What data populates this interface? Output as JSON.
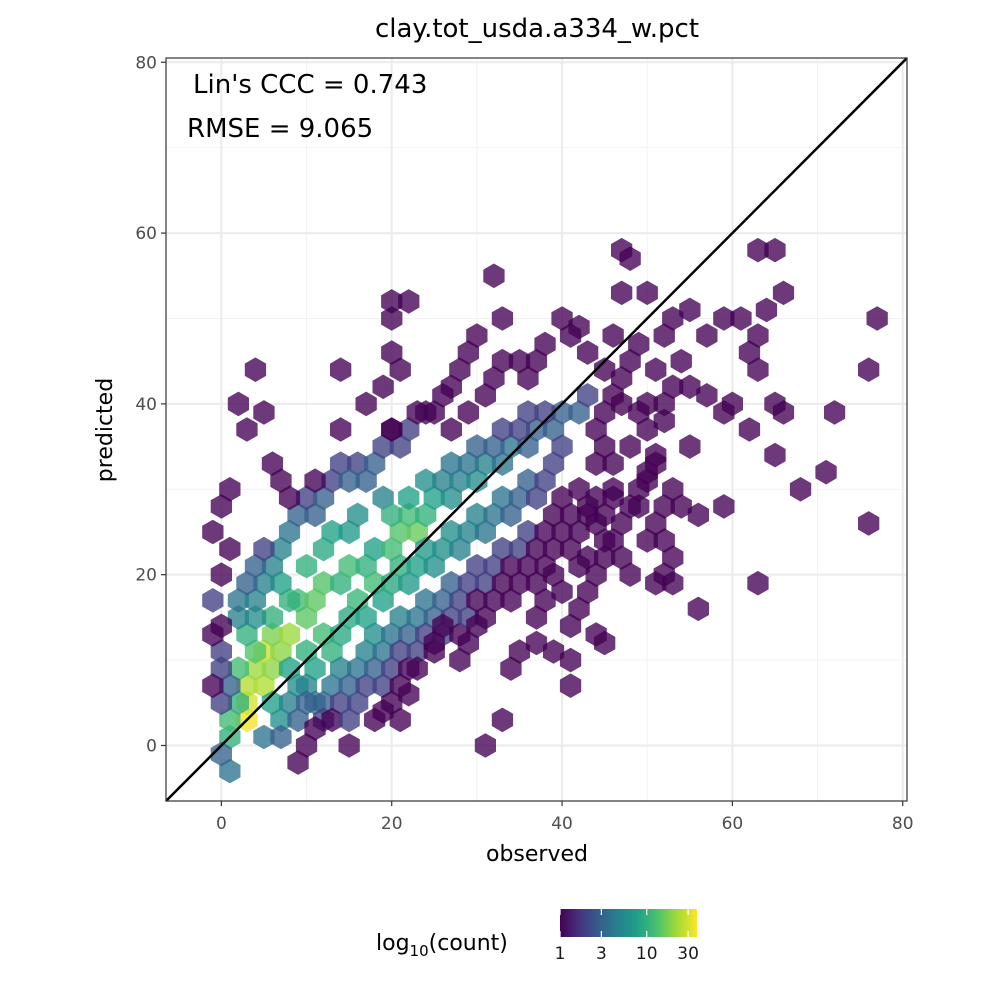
{
  "chart_data": {
    "type": "hexbin",
    "title": "clay.tot_usda.a334_w.pct",
    "xlabel": "observed",
    "ylabel": "predicted",
    "xlim": [
      -6.5,
      80.5
    ],
    "ylim": [
      -6.5,
      80.5
    ],
    "x_ticks": [
      0,
      20,
      40,
      60,
      80
    ],
    "y_ticks": [
      0,
      20,
      40,
      60,
      80
    ],
    "grid": true,
    "reference_line": "1:1",
    "annotations": [
      "Lin's CCC = 0.743",
      "RMSE = 9.065"
    ],
    "legend": {
      "title_base": "log",
      "title_sub": "10",
      "title_rest": "(count)",
      "position": "bottom",
      "ticks": [
        1,
        3,
        10,
        30
      ],
      "tick_labels": [
        "1",
        "3",
        "10",
        "30"
      ],
      "max_count": 38
    },
    "hex_width": 2.5,
    "bins": [
      [
        3,
        3,
        35
      ],
      [
        3,
        5,
        30
      ],
      [
        5,
        7,
        25
      ],
      [
        3,
        7,
        25
      ],
      [
        4,
        9,
        22
      ],
      [
        6,
        9,
        20
      ],
      [
        5,
        11,
        28
      ],
      [
        7,
        11,
        20
      ],
      [
        6,
        13,
        18
      ],
      [
        8,
        13,
        22
      ],
      [
        10,
        15,
        15
      ],
      [
        9,
        17,
        12
      ],
      [
        11,
        17,
        15
      ],
      [
        12,
        19,
        14
      ],
      [
        14,
        19,
        10
      ],
      [
        15,
        21,
        12
      ],
      [
        17,
        21,
        10
      ],
      [
        18,
        23,
        8
      ],
      [
        20,
        23,
        12
      ],
      [
        21,
        25,
        14
      ],
      [
        23,
        25,
        16
      ],
      [
        22,
        27,
        12
      ],
      [
        24,
        27,
        10
      ],
      [
        25,
        29,
        8
      ],
      [
        27,
        29,
        6
      ],
      [
        28,
        31,
        5
      ],
      [
        30,
        31,
        6
      ],
      [
        31,
        33,
        5
      ],
      [
        33,
        33,
        4
      ],
      [
        34,
        35,
        4
      ],
      [
        36,
        35,
        3
      ],
      [
        37,
        37,
        3
      ],
      [
        39,
        37,
        3
      ],
      [
        40,
        39,
        3
      ],
      [
        42,
        39,
        3
      ],
      [
        43,
        41,
        2
      ],
      [
        1,
        1,
        10
      ],
      [
        1,
        3,
        12
      ],
      [
        2,
        5,
        10
      ],
      [
        2,
        9,
        12
      ],
      [
        4,
        11,
        14
      ],
      [
        3,
        13,
        10
      ],
      [
        6,
        15,
        10
      ],
      [
        8,
        17,
        10
      ],
      [
        7,
        19,
        8
      ],
      [
        10,
        21,
        10
      ],
      [
        12,
        23,
        9
      ],
      [
        13,
        25,
        8
      ],
      [
        15,
        25,
        7
      ],
      [
        16,
        27,
        6
      ],
      [
        19,
        29,
        5
      ],
      [
        20,
        27,
        10
      ],
      [
        22,
        29,
        8
      ],
      [
        24,
        31,
        6
      ],
      [
        26,
        31,
        5
      ],
      [
        27,
        33,
        4
      ],
      [
        29,
        33,
        4
      ],
      [
        30,
        35,
        3
      ],
      [
        32,
        35,
        3
      ],
      [
        33,
        37,
        2
      ],
      [
        35,
        37,
        2
      ],
      [
        36,
        39,
        2
      ],
      [
        38,
        39,
        2
      ],
      [
        10,
        11,
        10
      ],
      [
        12,
        13,
        12
      ],
      [
        11,
        9,
        8
      ],
      [
        13,
        11,
        10
      ],
      [
        14,
        13,
        9
      ],
      [
        15,
        15,
        9
      ],
      [
        16,
        17,
        11
      ],
      [
        17,
        15,
        8
      ],
      [
        18,
        19,
        12
      ],
      [
        19,
        17,
        8
      ],
      [
        20,
        19,
        9
      ],
      [
        21,
        21,
        10
      ],
      [
        22,
        19,
        7
      ],
      [
        23,
        21,
        8
      ],
      [
        24,
        23,
        7
      ],
      [
        25,
        21,
        6
      ],
      [
        26,
        23,
        6
      ],
      [
        27,
        25,
        6
      ],
      [
        28,
        23,
        5
      ],
      [
        29,
        25,
        5
      ],
      [
        30,
        27,
        5
      ],
      [
        31,
        25,
        4
      ],
      [
        32,
        27,
        4
      ],
      [
        33,
        29,
        4
      ],
      [
        34,
        27,
        3
      ],
      [
        35,
        29,
        3
      ],
      [
        36,
        31,
        3
      ],
      [
        37,
        29,
        2
      ],
      [
        38,
        31,
        2
      ],
      [
        39,
        33,
        2
      ],
      [
        40,
        35,
        2
      ],
      [
        8,
        9,
        8
      ],
      [
        9,
        7,
        6
      ],
      [
        10,
        7,
        5
      ],
      [
        11,
        5,
        4
      ],
      [
        12,
        5,
        3
      ],
      [
        13,
        7,
        4
      ],
      [
        14,
        9,
        5
      ],
      [
        16,
        9,
        4
      ],
      [
        17,
        11,
        5
      ],
      [
        18,
        13,
        6
      ],
      [
        19,
        11,
        4
      ],
      [
        20,
        13,
        4
      ],
      [
        21,
        15,
        5
      ],
      [
        22,
        13,
        3
      ],
      [
        23,
        15,
        4
      ],
      [
        24,
        17,
        4
      ],
      [
        25,
        15,
        3
      ],
      [
        26,
        17,
        3
      ],
      [
        27,
        19,
        3
      ],
      [
        28,
        17,
        2
      ],
      [
        29,
        19,
        2
      ],
      [
        30,
        21,
        2
      ],
      [
        31,
        19,
        2
      ],
      [
        32,
        21,
        2
      ],
      [
        33,
        23,
        2
      ],
      [
        34,
        21,
        1
      ],
      [
        35,
        23,
        2
      ],
      [
        36,
        25,
        2
      ],
      [
        37,
        23,
        1
      ],
      [
        38,
        25,
        1
      ],
      [
        39,
        27,
        1
      ],
      [
        40,
        29,
        1
      ],
      [
        41,
        27,
        1
      ],
      [
        4,
        15,
        6
      ],
      [
        2,
        15,
        5
      ],
      [
        2,
        17,
        4
      ],
      [
        4,
        17,
        5
      ],
      [
        5,
        19,
        5
      ],
      [
        3,
        19,
        3
      ],
      [
        6,
        21,
        5
      ],
      [
        4,
        21,
        3
      ],
      [
        7,
        23,
        5
      ],
      [
        5,
        23,
        2
      ],
      [
        8,
        25,
        4
      ],
      [
        9,
        27,
        3
      ],
      [
        11,
        27,
        3
      ],
      [
        10,
        29,
        2
      ],
      [
        12,
        29,
        3
      ],
      [
        13,
        31,
        2
      ],
      [
        11,
        31,
        1
      ],
      [
        14,
        33,
        2
      ],
      [
        16,
        33,
        2
      ],
      [
        15,
        31,
        3
      ],
      [
        17,
        31,
        3
      ],
      [
        18,
        33,
        3
      ],
      [
        19,
        35,
        2
      ],
      [
        21,
        35,
        2
      ],
      [
        22,
        37,
        2
      ],
      [
        20,
        37,
        1
      ],
      [
        23,
        39,
        1
      ],
      [
        25,
        39,
        1
      ],
      [
        6,
        5,
        8
      ],
      [
        7,
        3,
        6
      ],
      [
        8,
        5,
        5
      ],
      [
        5,
        1,
        4
      ],
      [
        7,
        1,
        3
      ],
      [
        9,
        3,
        3
      ],
      [
        10,
        5,
        3
      ],
      [
        12,
        3,
        2
      ],
      [
        14,
        5,
        2
      ],
      [
        13,
        3,
        1
      ],
      [
        15,
        3,
        2
      ],
      [
        16,
        5,
        2
      ],
      [
        15,
        7,
        3
      ],
      [
        17,
        7,
        2
      ],
      [
        18,
        9,
        3
      ],
      [
        19,
        7,
        2
      ],
      [
        20,
        9,
        2
      ],
      [
        21,
        11,
        2
      ],
      [
        22,
        9,
        1
      ],
      [
        23,
        11,
        2
      ],
      [
        24,
        13,
        2
      ],
      [
        25,
        11,
        1
      ],
      [
        26,
        13,
        2
      ],
      [
        27,
        15,
        2
      ],
      [
        28,
        13,
        1
      ],
      [
        29,
        15,
        2
      ],
      [
        30,
        17,
        1
      ],
      [
        31,
        15,
        1
      ],
      [
        32,
        17,
        1
      ],
      [
        33,
        19,
        1
      ],
      [
        34,
        17,
        1
      ],
      [
        35,
        19,
        1
      ],
      [
        36,
        21,
        1
      ],
      [
        37,
        19,
        1
      ],
      [
        38,
        21,
        1
      ],
      [
        39,
        23,
        1
      ],
      [
        40,
        25,
        1
      ],
      [
        41,
        23,
        1
      ],
      [
        42,
        25,
        1
      ],
      [
        43,
        27,
        1
      ],
      [
        44,
        29,
        1
      ],
      [
        45,
        27,
        1
      ],
      [
        46,
        29,
        1
      ],
      [
        1,
        -3,
        4
      ],
      [
        0,
        -1,
        3
      ],
      [
        1,
        7,
        3
      ],
      [
        0,
        9,
        2
      ],
      [
        0,
        5,
        2
      ],
      [
        -1,
        7,
        1
      ],
      [
        0,
        11,
        2
      ],
      [
        -1,
        13,
        1
      ],
      [
        0,
        14,
        1
      ],
      [
        -1,
        17,
        2
      ],
      [
        0,
        20,
        1
      ],
      [
        1,
        23,
        1
      ],
      [
        -1,
        25,
        1
      ],
      [
        0,
        28,
        1
      ],
      [
        1,
        30,
        1
      ],
      [
        2,
        40,
        1
      ],
      [
        4,
        44,
        1
      ],
      [
        3,
        37,
        1
      ],
      [
        5,
        39,
        1
      ],
      [
        6,
        33,
        1
      ],
      [
        7,
        31,
        1
      ],
      [
        8,
        29,
        1
      ],
      [
        9,
        -2,
        1
      ],
      [
        10,
        0,
        1
      ],
      [
        11,
        2,
        1
      ],
      [
        15,
        0,
        1
      ],
      [
        18,
        3,
        1
      ],
      [
        31,
        0,
        1
      ],
      [
        33,
        3,
        1
      ],
      [
        41,
        7,
        1
      ],
      [
        41,
        10,
        1
      ],
      [
        44,
        13,
        1
      ],
      [
        45,
        12,
        1
      ],
      [
        34,
        9,
        1
      ],
      [
        35,
        11,
        1
      ],
      [
        37,
        12,
        1
      ],
      [
        39,
        11,
        1
      ],
      [
        41,
        14,
        1
      ],
      [
        28,
        10,
        1
      ],
      [
        29,
        12,
        1
      ],
      [
        30,
        14,
        1
      ],
      [
        26,
        14,
        1
      ],
      [
        25,
        12,
        1
      ],
      [
        20,
        5,
        1
      ],
      [
        21,
        7,
        1
      ],
      [
        19,
        4,
        1
      ],
      [
        22,
        6,
        1
      ],
      [
        21,
        3,
        1
      ],
      [
        23,
        9,
        1
      ],
      [
        42,
        16,
        1
      ],
      [
        43,
        18,
        1
      ],
      [
        44,
        20,
        1
      ],
      [
        45,
        22,
        1
      ],
      [
        46,
        24,
        1
      ],
      [
        47,
        26,
        1
      ],
      [
        48,
        28,
        1
      ],
      [
        49,
        30,
        1
      ],
      [
        50,
        32,
        1
      ],
      [
        51,
        34,
        1
      ],
      [
        44,
        37,
        1
      ],
      [
        45,
        39,
        1
      ],
      [
        46,
        41,
        1
      ],
      [
        47,
        43,
        1
      ],
      [
        48,
        45,
        1
      ],
      [
        49,
        47,
        1
      ],
      [
        45,
        44,
        1
      ],
      [
        43,
        46,
        1
      ],
      [
        41,
        48,
        1
      ],
      [
        40,
        50,
        1
      ],
      [
        42,
        49,
        1
      ],
      [
        38,
        47,
        1
      ],
      [
        37,
        45,
        1
      ],
      [
        36,
        43,
        1
      ],
      [
        35,
        45,
        1
      ],
      [
        33,
        45,
        1
      ],
      [
        32,
        43,
        1
      ],
      [
        31,
        41,
        1
      ],
      [
        30,
        48,
        1
      ],
      [
        29,
        46,
        1
      ],
      [
        28,
        44,
        1
      ],
      [
        27,
        42,
        1
      ],
      [
        33,
        50,
        1
      ],
      [
        32,
        55,
        1
      ],
      [
        22,
        52,
        1
      ],
      [
        20,
        52,
        1
      ],
      [
        20,
        46,
        1
      ],
      [
        21,
        44,
        1
      ],
      [
        19,
        42,
        1
      ],
      [
        17,
        40,
        1
      ],
      [
        20,
        37,
        1
      ],
      [
        24,
        39,
        1
      ],
      [
        26,
        41,
        1
      ],
      [
        27,
        37,
        1
      ],
      [
        29,
        39,
        1
      ],
      [
        14,
        44,
        1
      ],
      [
        14,
        37,
        1
      ],
      [
        20,
        50,
        1
      ],
      [
        46,
        48,
        1
      ],
      [
        47,
        53,
        1
      ],
      [
        47,
        58,
        1
      ],
      [
        48,
        57,
        1
      ],
      [
        50,
        53,
        1
      ],
      [
        52,
        48,
        1
      ],
      [
        53,
        50,
        1
      ],
      [
        54,
        45,
        1
      ],
      [
        55,
        51,
        1
      ],
      [
        51,
        44,
        1
      ],
      [
        50,
        40,
        1
      ],
      [
        52,
        40,
        1
      ],
      [
        53,
        42,
        1
      ],
      [
        55,
        42,
        1
      ],
      [
        57,
        48,
        1
      ],
      [
        59,
        50,
        1
      ],
      [
        61,
        50,
        1
      ],
      [
        63,
        48,
        1
      ],
      [
        64,
        51,
        1
      ],
      [
        66,
        53,
        1
      ],
      [
        62,
        46,
        1
      ],
      [
        63,
        44,
        1
      ],
      [
        60,
        40,
        1
      ],
      [
        59,
        39,
        1
      ],
      [
        57,
        41,
        1
      ],
      [
        55,
        35,
        1
      ],
      [
        52,
        38,
        1
      ],
      [
        50,
        37,
        1
      ],
      [
        49,
        39,
        1
      ],
      [
        47,
        40,
        1
      ],
      [
        48,
        35,
        1
      ],
      [
        46,
        33,
        1
      ],
      [
        50,
        31,
        1
      ],
      [
        51,
        33,
        1
      ],
      [
        49,
        28,
        1
      ],
      [
        52,
        28,
        1
      ],
      [
        53,
        30,
        1
      ],
      [
        54,
        28,
        1
      ],
      [
        56,
        27,
        1
      ],
      [
        59,
        28,
        1
      ],
      [
        51,
        26,
        1
      ],
      [
        50,
        24,
        1
      ],
      [
        52,
        24,
        1
      ],
      [
        53,
        22,
        1
      ],
      [
        52,
        20,
        1
      ],
      [
        51,
        19,
        1
      ],
      [
        53,
        19,
        1
      ],
      [
        56,
        16,
        1
      ],
      [
        63,
        19,
        1
      ],
      [
        62,
        37,
        1
      ],
      [
        65,
        34,
        1
      ],
      [
        65,
        40,
        1
      ],
      [
        66,
        39,
        1
      ],
      [
        68,
        30,
        1
      ],
      [
        71,
        32,
        1
      ],
      [
        72,
        39,
        1
      ],
      [
        76,
        26,
        1
      ],
      [
        76,
        44,
        1
      ],
      [
        77,
        50,
        1
      ],
      [
        63,
        58,
        1
      ],
      [
        65,
        58,
        1
      ],
      [
        45,
        35,
        1
      ],
      [
        44,
        33,
        1
      ],
      [
        42,
        30,
        1
      ],
      [
        43,
        28,
        1
      ],
      [
        46,
        30,
        1
      ],
      [
        44,
        26,
        1
      ],
      [
        45,
        24,
        1
      ],
      [
        47,
        22,
        1
      ],
      [
        48,
        20,
        1
      ],
      [
        43,
        22,
        1
      ],
      [
        42,
        21,
        1
      ],
      [
        39,
        20,
        1
      ],
      [
        40,
        18,
        1
      ],
      [
        38,
        17,
        1
      ],
      [
        37,
        15,
        1
      ]
    ]
  }
}
